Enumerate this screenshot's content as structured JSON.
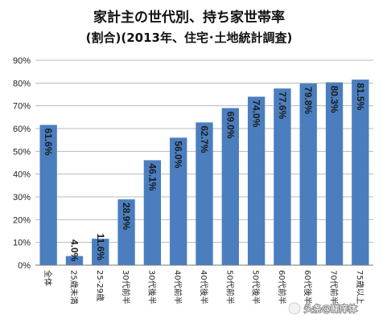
{
  "chart_data": {
    "type": "bar",
    "title": "家計主の世代別、持ち家世帯率",
    "subtitle": "(割合)(2013年、住宅･土地統計調査)",
    "categories": [
      "全体",
      "25歳未満",
      "25-29歳",
      "30代前半",
      "30代後半",
      "40代前半",
      "40代後半",
      "50代前半",
      "50代後半",
      "60代前半",
      "60代後半",
      "70代前半",
      "75歳以上"
    ],
    "values": [
      61.6,
      4.0,
      11.6,
      28.9,
      46.1,
      56.0,
      62.7,
      69.0,
      74.0,
      77.6,
      79.8,
      80.3,
      81.5
    ],
    "data_labels": [
      "61.6%",
      "4.0%",
      "11.6%",
      "28.9%",
      "46.1%",
      "56.0%",
      "62.7%",
      "69.0%",
      "74.0%",
      "77.6%",
      "79.8%",
      "80.3%",
      "81.5%"
    ],
    "y_ticks": [
      "0%",
      "10%",
      "20%",
      "30%",
      "40%",
      "50%",
      "60%",
      "70%",
      "80%",
      "90%"
    ],
    "ylim": [
      0,
      90
    ],
    "grid": true,
    "bar_color": "#4a7ebf",
    "grid_color": "#b8b8b8"
  },
  "watermark": {
    "text": "头条@睇庠体"
  }
}
